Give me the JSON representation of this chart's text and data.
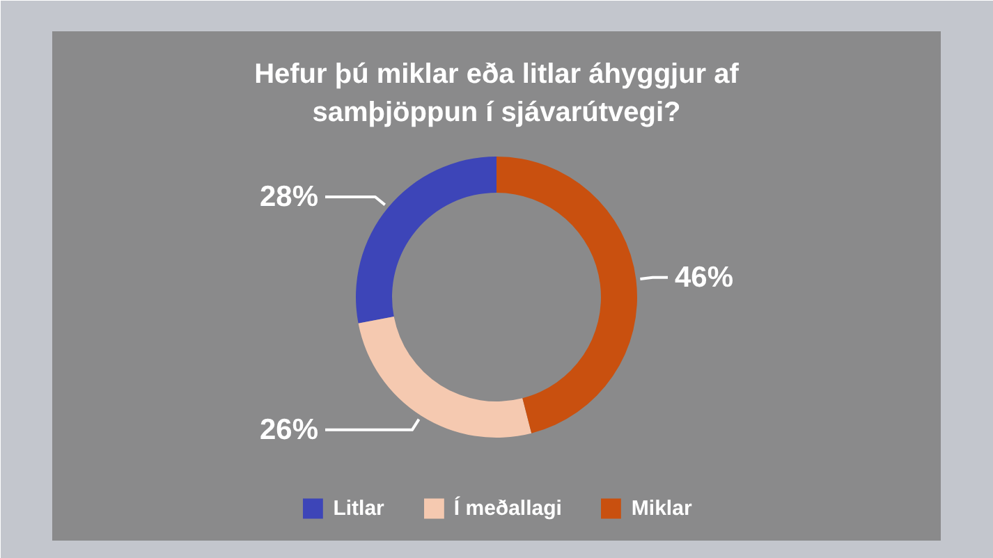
{
  "chart_data": {
    "type": "donut",
    "title": "Hefur þú miklar eða litlar áhyggjur af samþjöppun í sjávarútvegi?",
    "categories": [
      "Litlar",
      "Í meðallagi",
      "Miklar"
    ],
    "values": [
      28,
      26,
      46
    ],
    "colors": [
      "#3d45b8",
      "#f5c9b0",
      "#c9500f"
    ],
    "value_labels": [
      "28%",
      "26%",
      "46%"
    ],
    "legend": "bottom"
  }
}
